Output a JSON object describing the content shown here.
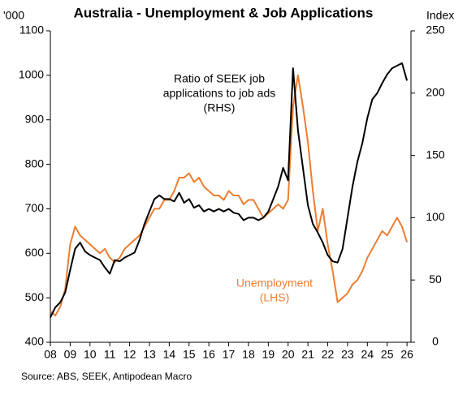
{
  "chart_data": {
    "type": "line",
    "title": "Australia - Unemployment & Job Applications",
    "ylabel": "'000",
    "y2label": "Index",
    "source": "Source: ABS, SEEK, Antipodean Macro",
    "annotations": [
      {
        "series": 1,
        "lines": [
          "Ratio of SEEK job",
          "applications to job ads",
          "(RHS)"
        ]
      },
      {
        "series": 0,
        "lines": [
          "Unemployment",
          "(LHS)"
        ]
      }
    ],
    "x": [
      2008,
      2008.25,
      2008.5,
      2008.75,
      2009,
      2009.25,
      2009.5,
      2009.75,
      2010,
      2010.25,
      2010.5,
      2010.75,
      2011,
      2011.25,
      2011.5,
      2011.75,
      2012,
      2012.25,
      2012.5,
      2012.75,
      2013,
      2013.25,
      2013.5,
      2013.75,
      2014,
      2014.25,
      2014.5,
      2014.75,
      2015,
      2015.25,
      2015.5,
      2015.75,
      2016,
      2016.25,
      2016.5,
      2016.75,
      2017,
      2017.25,
      2017.5,
      2017.75,
      2018,
      2018.25,
      2018.5,
      2018.75,
      2019,
      2019.25,
      2019.5,
      2019.75,
      2020,
      2020.25,
      2020.5,
      2020.75,
      2021,
      2021.25,
      2021.5,
      2021.75,
      2022,
      2022.25,
      2022.5,
      2022.75,
      2023,
      2023.25,
      2023.5,
      2023.75,
      2024,
      2024.25,
      2024.5,
      2024.75,
      2025,
      2025.25,
      2025.5,
      2025.75,
      2026
    ],
    "series": [
      {
        "name": "Unemployment",
        "color": "#ed7d31",
        "axis": "y",
        "values": [
          470,
          460,
          480,
          520,
          620,
          660,
          640,
          630,
          620,
          610,
          600,
          610,
          590,
          580,
          590,
          610,
          620,
          630,
          640,
          660,
          680,
          700,
          700,
          720,
          720,
          740,
          770,
          770,
          780,
          760,
          770,
          750,
          740,
          730,
          730,
          720,
          740,
          730,
          730,
          710,
          720,
          720,
          700,
          680,
          690,
          700,
          710,
          700,
          720,
          930,
          1000,
          930,
          850,
          740,
          650,
          700,
          620,
          560,
          490,
          500,
          510,
          530,
          540,
          560,
          590,
          610,
          630,
          650,
          640,
          660,
          680,
          660,
          625
        ]
      },
      {
        "name": "Ratio of SEEK job applications to job ads",
        "color": "#000000",
        "axis": "y2",
        "values": [
          20,
          28,
          32,
          40,
          58,
          75,
          80,
          73,
          70,
          68,
          66,
          60,
          55,
          66,
          65,
          68,
          70,
          72,
          82,
          95,
          105,
          115,
          118,
          115,
          115,
          113,
          120,
          112,
          115,
          108,
          110,
          105,
          107,
          105,
          107,
          105,
          107,
          104,
          103,
          98,
          100,
          100,
          98,
          100,
          105,
          115,
          125,
          140,
          130,
          220,
          170,
          140,
          110,
          95,
          88,
          80,
          70,
          65,
          64,
          75,
          100,
          125,
          145,
          160,
          180,
          195,
          200,
          208,
          215,
          220,
          222,
          224,
          210
        ]
      }
    ],
    "xlim": [
      2008,
      2026.2
    ],
    "xticks": [
      {
        "value": 2008,
        "label": "08"
      },
      {
        "value": 2009,
        "label": "09"
      },
      {
        "value": 2010,
        "label": "10"
      },
      {
        "value": 2011,
        "label": "11"
      },
      {
        "value": 2012,
        "label": "12"
      },
      {
        "value": 2013,
        "label": "13"
      },
      {
        "value": 2014,
        "label": "14"
      },
      {
        "value": 2015,
        "label": "15"
      },
      {
        "value": 2016,
        "label": "16"
      },
      {
        "value": 2017,
        "label": "17"
      },
      {
        "value": 2018,
        "label": "18"
      },
      {
        "value": 2019,
        "label": "19"
      },
      {
        "value": 2020,
        "label": "20"
      },
      {
        "value": 2021,
        "label": "21"
      },
      {
        "value": 2022,
        "label": "22"
      },
      {
        "value": 2023,
        "label": "23"
      },
      {
        "value": 2024,
        "label": "24"
      },
      {
        "value": 2025,
        "label": "25"
      },
      {
        "value": 2026,
        "label": "26"
      }
    ],
    "ylim": [
      400,
      1100
    ],
    "yticks": [
      400,
      500,
      600,
      700,
      800,
      900,
      1000,
      1100
    ],
    "y2lim": [
      0,
      250
    ],
    "y2ticks": [
      0,
      50,
      100,
      150,
      200,
      250
    ],
    "grid": false
  }
}
